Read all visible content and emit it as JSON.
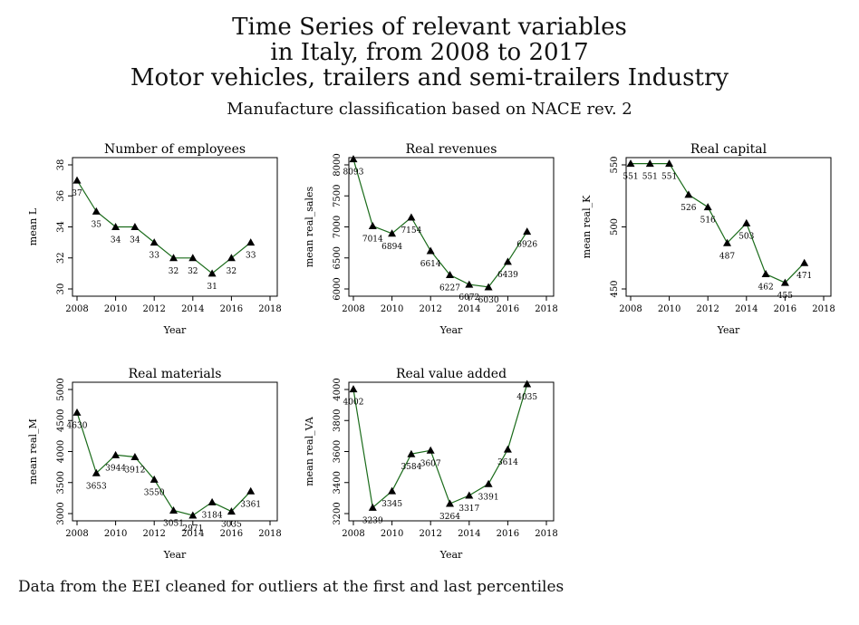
{
  "title_lines": [
    "Time Series of relevant variables",
    "in Italy, from 2008 to 2017",
    "Motor vehicles, trailers and semi-trailers Industry"
  ],
  "subtitle": "Manufacture classification based on NACE rev. 2",
  "footer": "Data from the EEI cleaned for outliers at the first and last percentiles",
  "colors": {
    "line": "#1a6b1a",
    "marker": "#000000"
  },
  "chart_data": [
    {
      "type": "line",
      "title": "Number of employees",
      "xlabel": "Year",
      "ylabel": "mean L",
      "x": [
        2008,
        2009,
        2010,
        2011,
        2012,
        2013,
        2014,
        2015,
        2016,
        2017
      ],
      "values": [
        37,
        35,
        34,
        34,
        33,
        32,
        32,
        31,
        32,
        33
      ],
      "labels": [
        "37",
        "35",
        "34",
        "34",
        "33",
        "32",
        "32",
        "31",
        "32",
        "33"
      ],
      "xlim": [
        2008,
        2018
      ],
      "ylim": [
        30,
        38
      ],
      "xticks": [
        2008,
        2010,
        2012,
        2014,
        2016,
        2018
      ],
      "yticks": [
        30,
        32,
        34,
        36,
        38
      ]
    },
    {
      "type": "line",
      "title": "Real revenues",
      "xlabel": "Year",
      "ylabel": "mean real_sales",
      "x": [
        2008,
        2009,
        2010,
        2011,
        2012,
        2013,
        2014,
        2015,
        2016,
        2017
      ],
      "values": [
        8093,
        7014,
        6894,
        7154,
        6614,
        6227,
        6072,
        6030,
        6439,
        6926
      ],
      "labels": [
        "8093",
        "7014",
        "6894",
        "7154",
        "6614",
        "6227",
        "6072",
        "6030",
        "6439",
        "6926"
      ],
      "xlim": [
        2008,
        2018
      ],
      "ylim": [
        6000,
        8000
      ],
      "xticks": [
        2008,
        2010,
        2012,
        2014,
        2016,
        2018
      ],
      "yticks": [
        6000,
        6500,
        7000,
        7500,
        8000
      ]
    },
    {
      "type": "line",
      "title": "Real capital",
      "xlabel": "Year",
      "ylabel": "mean real_K",
      "x": [
        2008,
        2009,
        2010,
        2011,
        2012,
        2013,
        2014,
        2015,
        2016,
        2017
      ],
      "values": [
        551,
        551,
        551,
        526,
        516,
        487,
        503,
        462,
        455,
        471
      ],
      "labels": [
        "551",
        "551",
        "551",
        "526",
        "516",
        "487",
        "503",
        "462",
        "455",
        "471"
      ],
      "xlim": [
        2008,
        2018
      ],
      "ylim": [
        450,
        550
      ],
      "xticks": [
        2008,
        2010,
        2012,
        2014,
        2016,
        2018
      ],
      "yticks": [
        450,
        500,
        550
      ]
    },
    {
      "type": "line",
      "title": "Real materials",
      "xlabel": "Year",
      "ylabel": "mean real_M",
      "x": [
        2008,
        2009,
        2010,
        2011,
        2012,
        2013,
        2014,
        2015,
        2016,
        2017
      ],
      "values": [
        4630,
        3653,
        3944,
        3912,
        3550,
        3051,
        2971,
        3184,
        3035,
        3361
      ],
      "labels": [
        "4630",
        "3653",
        "3944",
        "3912",
        "3550",
        "3051",
        "2971",
        "3184",
        "3035",
        "3361"
      ],
      "xlim": [
        2008,
        2018
      ],
      "ylim": [
        3000,
        5000
      ],
      "xticks": [
        2008,
        2010,
        2012,
        2014,
        2016,
        2018
      ],
      "yticks": [
        3000,
        3500,
        4000,
        4500,
        5000
      ]
    },
    {
      "type": "line",
      "title": "Real value added",
      "xlabel": "Year",
      "ylabel": "mean real_VA",
      "x": [
        2008,
        2009,
        2010,
        2011,
        2012,
        2013,
        2014,
        2015,
        2016,
        2017
      ],
      "values": [
        4002,
        3239,
        3345,
        3584,
        3607,
        3264,
        3317,
        3391,
        3614,
        4035
      ],
      "labels": [
        "4002",
        "3239",
        "3345",
        "3584",
        "3607",
        "3264",
        "3317",
        "3391",
        "3614",
        "4035"
      ],
      "xlim": [
        2008,
        2018
      ],
      "ylim": [
        3200,
        4000
      ],
      "xticks": [
        2008,
        2010,
        2012,
        2014,
        2016,
        2018
      ],
      "yticks": [
        3200,
        3400,
        3600,
        3800,
        4000
      ]
    }
  ]
}
